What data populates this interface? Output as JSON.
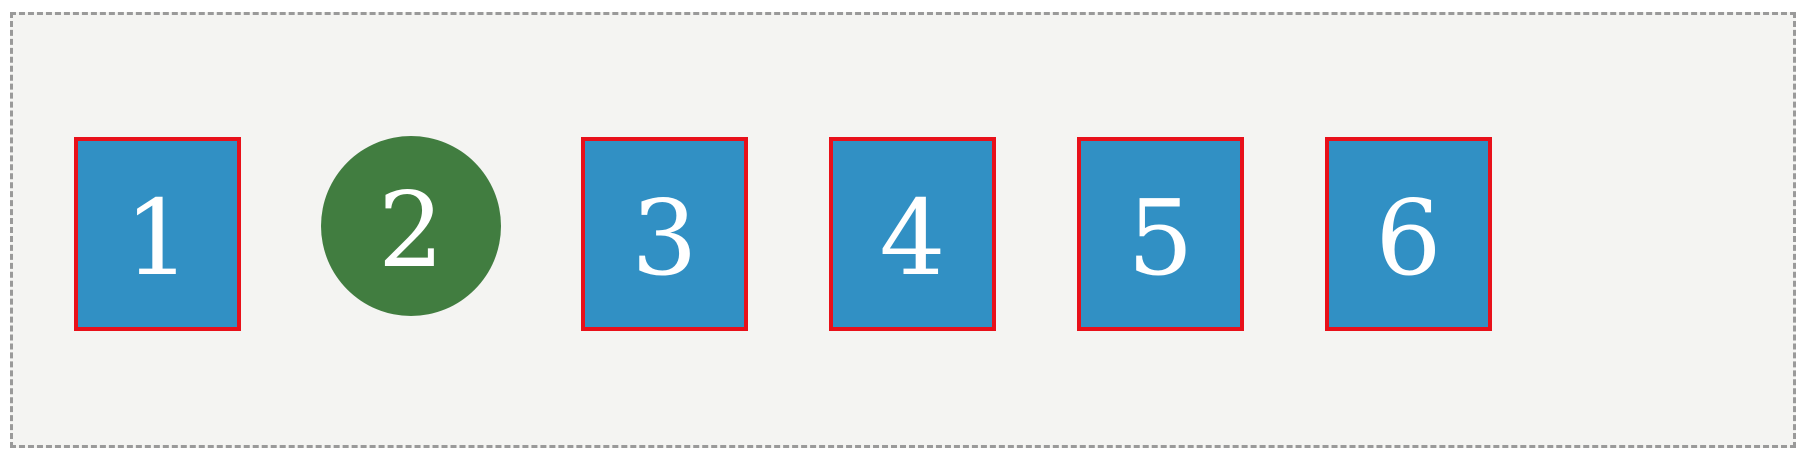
{
  "items": [
    {
      "label": "1",
      "shape": "square",
      "fill": "#3190c4",
      "border": "#e8101a"
    },
    {
      "label": "2",
      "shape": "circle",
      "fill": "#417d40"
    },
    {
      "label": "3",
      "shape": "square",
      "fill": "#3190c4",
      "border": "#e8101a"
    },
    {
      "label": "4",
      "shape": "square",
      "fill": "#3190c4",
      "border": "#e8101a"
    },
    {
      "label": "5",
      "shape": "square",
      "fill": "#3190c4",
      "border": "#e8101a"
    },
    {
      "label": "6",
      "shape": "square",
      "fill": "#3190c4",
      "border": "#e8101a"
    }
  ]
}
